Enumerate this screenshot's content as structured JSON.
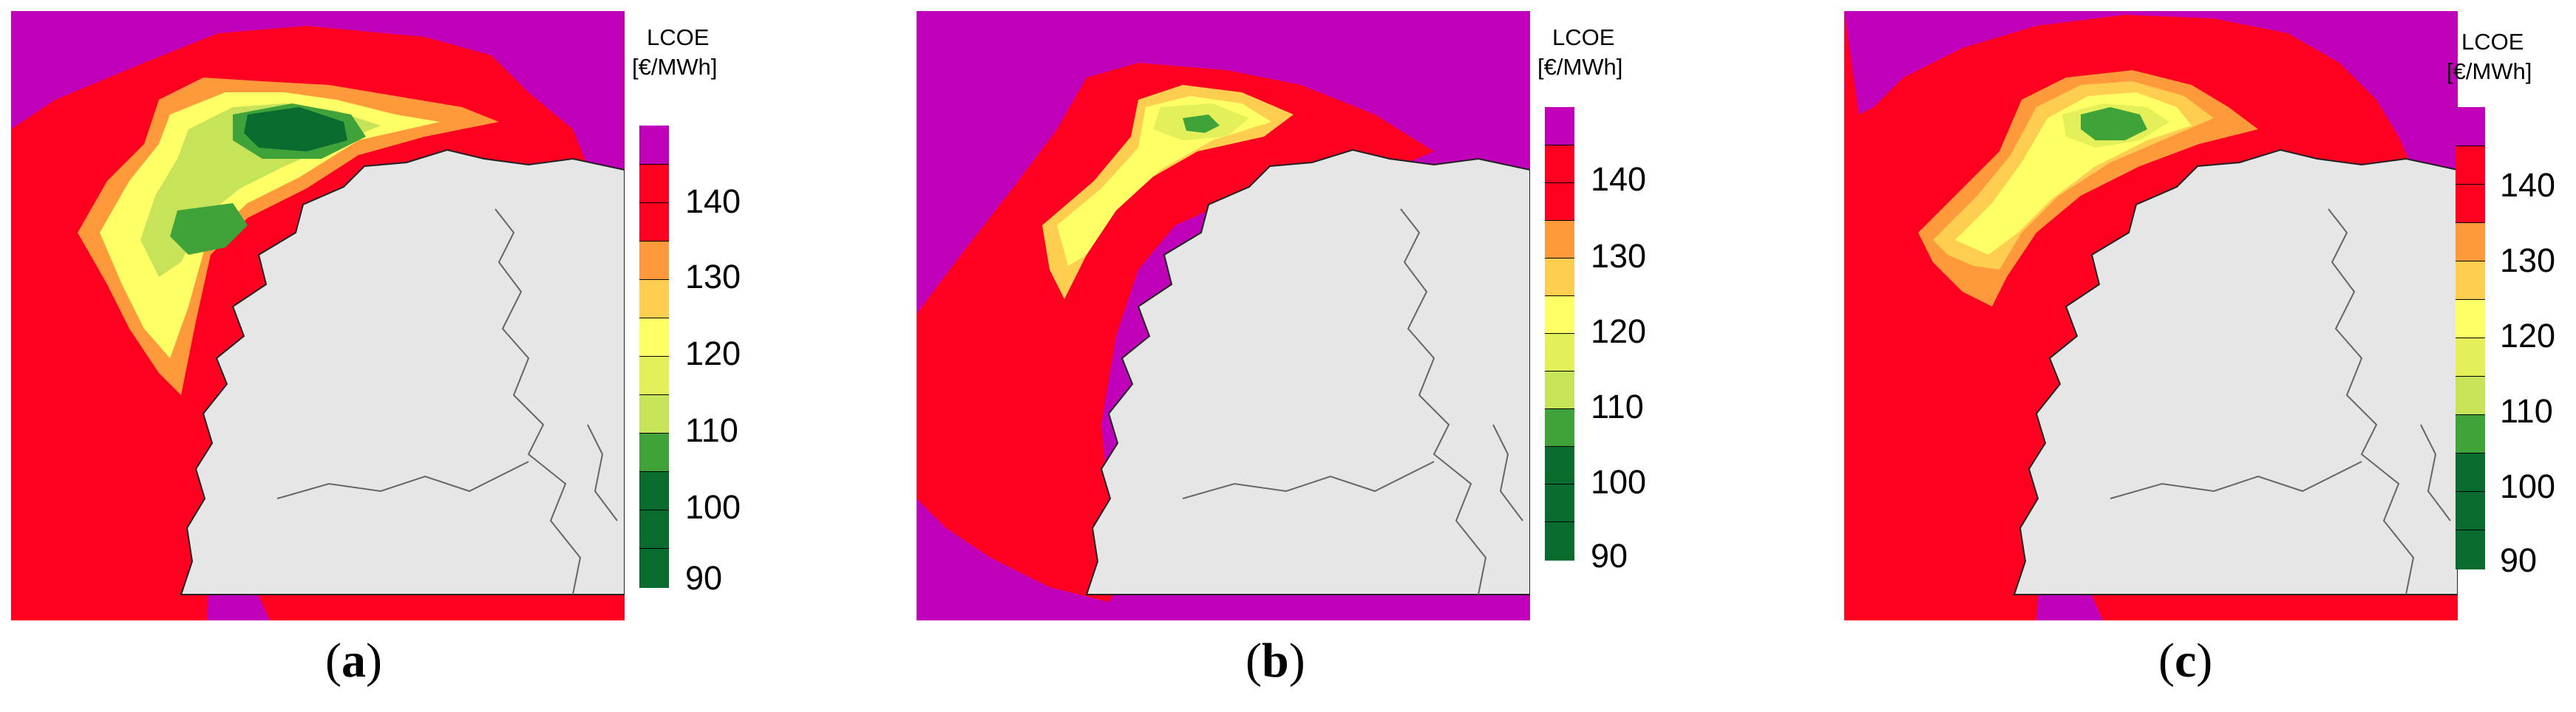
{
  "legend": {
    "title_line1": "LCOE",
    "title_line2": "[€/MWh]",
    "ticks": [
      "140",
      "130",
      "120",
      "110",
      "100",
      "90"
    ],
    "band_colors": [
      "#c000b8",
      "#ff0020",
      "#ff0020",
      "#ff9a3c",
      "#ffce50",
      "#ffff66",
      "#e4f05a",
      "#c6e35a",
      "#3fa33a",
      "#0a6b2f",
      "#0a6b2f",
      "#0a6b2f"
    ]
  },
  "colors": {
    "land": "#e6e6e6",
    "sea_high": "#c000b8",
    "red": "#ff0020",
    "orange": "#ff9a3c",
    "yellow_orange": "#ffce50",
    "yellow": "#ffff66",
    "yellow_green": "#d8ee5a",
    "green": "#3fa33a",
    "dark_green": "#0a6b2f"
  },
  "panels": [
    {
      "caption_prefix": "(",
      "caption_letter": "a",
      "caption_suffix": ")"
    },
    {
      "caption_prefix": "(",
      "caption_letter": "b",
      "caption_suffix": ")"
    },
    {
      "caption_prefix": "(",
      "caption_letter": "c",
      "caption_suffix": ")"
    }
  ]
}
